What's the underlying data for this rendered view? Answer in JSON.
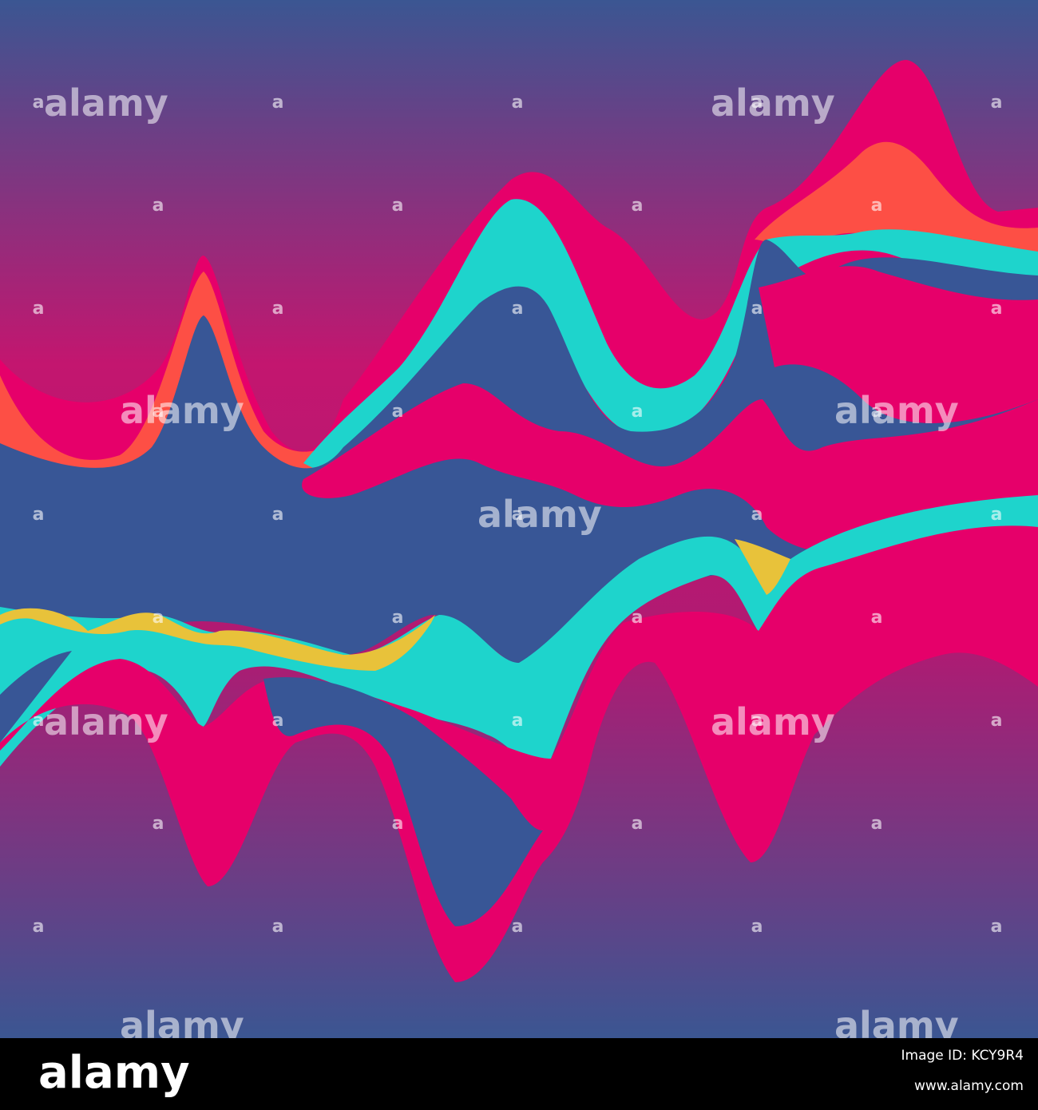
{
  "watermark": {
    "text": "alamy",
    "mark": "a"
  },
  "footer": {
    "logo": "alamy",
    "image_id": "Image ID: KCY9R4",
    "url": "www.alamy.com"
  }
}
